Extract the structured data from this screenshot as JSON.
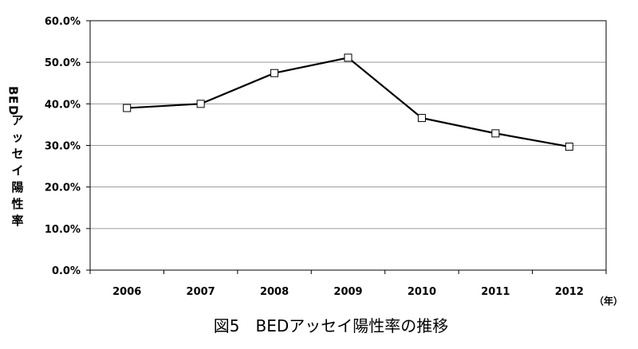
{
  "chart_data": {
    "type": "line",
    "title": "",
    "caption": "図5　BEDアッセイ陽性率の推移",
    "xlabel": "（年）",
    "ylabel": "BEDアッセイ陽性率",
    "categories": [
      "2006",
      "2007",
      "2008",
      "2009",
      "2010",
      "2011",
      "2012"
    ],
    "series": [
      {
        "values": [
          39.0,
          40.0,
          47.4,
          51.1,
          36.6,
          32.9,
          29.7
        ]
      }
    ],
    "ylim": [
      0,
      60
    ],
    "yticks": [
      "0.0%",
      "10.0%",
      "20.0%",
      "30.0%",
      "40.0%",
      "50.0%",
      "60.0%"
    ],
    "grid": true,
    "marker": "open-square",
    "line_color": "#000000",
    "grid_color": "#999999"
  }
}
